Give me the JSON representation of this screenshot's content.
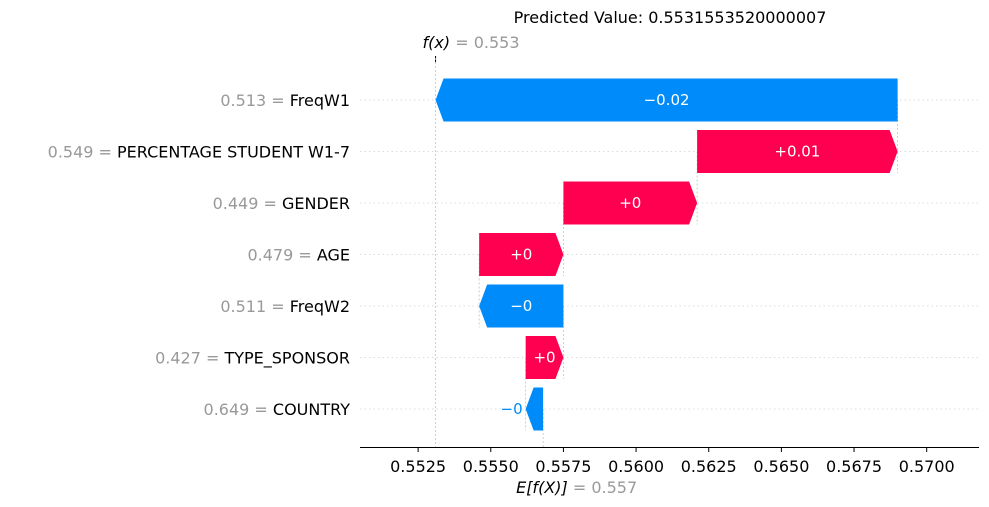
{
  "chart_data": {
    "type": "waterfall",
    "title": "Predicted Value: 0.5531553520000007",
    "fx_label": "f(x)",
    "fx_value": "0.553",
    "fx": 0.5531,
    "base_label": "E[f(X)]",
    "base_value_text": "0.557",
    "base": 0.5568,
    "xlim": [
      0.5505,
      0.5718
    ],
    "xticks": [
      "0.5525",
      "0.5550",
      "0.5575",
      "0.5600",
      "0.5625",
      "0.5650",
      "0.5675",
      "0.5700"
    ],
    "colors": {
      "positive": "#ff0051",
      "negative": "#008bfb"
    },
    "rows": [
      {
        "feature_value": "0.513",
        "feature": "FreqW1",
        "start": 0.569,
        "end": 0.5531,
        "label": "−0.02",
        "sign": "neg"
      },
      {
        "feature_value": "0.549",
        "feature": "PERCENTAGE STUDENT W1-7",
        "start": 0.5621,
        "end": 0.569,
        "label": "+0.01",
        "sign": "pos"
      },
      {
        "feature_value": "0.449",
        "feature": "GENDER",
        "start": 0.5575,
        "end": 0.5621,
        "label": "+0",
        "sign": "pos"
      },
      {
        "feature_value": "0.479",
        "feature": "AGE",
        "start": 0.5546,
        "end": 0.5575,
        "label": "+0",
        "sign": "pos"
      },
      {
        "feature_value": "0.511",
        "feature": "FreqW2",
        "start": 0.5575,
        "end": 0.5546,
        "label": "−0",
        "sign": "neg"
      },
      {
        "feature_value": "0.427",
        "feature": "TYPE_SPONSOR",
        "start": 0.5562,
        "end": 0.5575,
        "label": "+0",
        "sign": "pos"
      },
      {
        "feature_value": "0.649",
        "feature": "COUNTRY",
        "start": 0.5568,
        "end": 0.5562,
        "label": "−0",
        "sign": "neg"
      }
    ]
  }
}
